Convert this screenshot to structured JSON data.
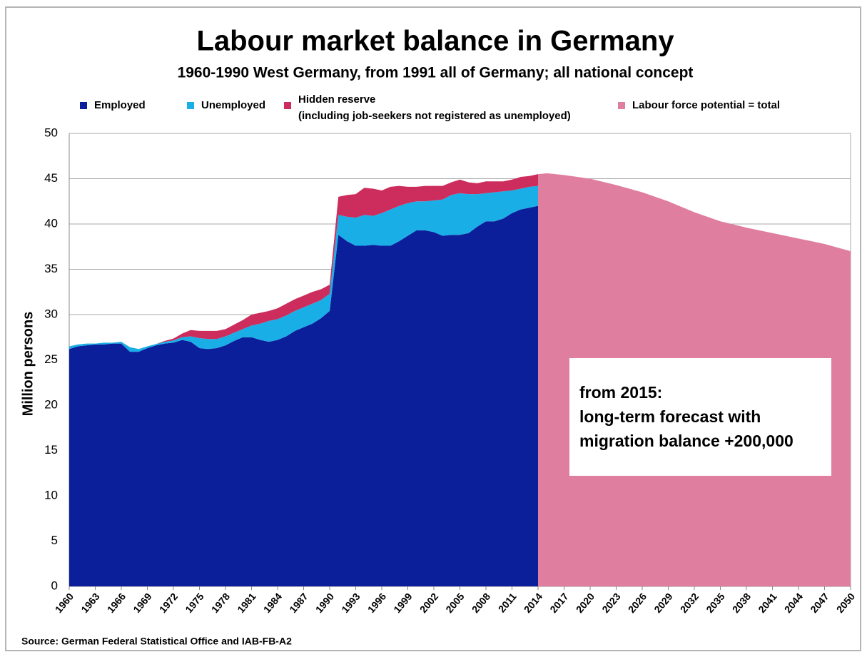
{
  "chart_data": {
    "type": "area",
    "title": "Labour market balance in Germany",
    "subtitle": "1960-1990 West Germany, from 1991 all of Germany; all national concept",
    "ylabel": "Million persons",
    "source": "Source: German Federal Statistical Office and IAB-FB-A2",
    "annotation": [
      "from 2015:",
      "long-term forecast with",
      "migration balance +200,000"
    ],
    "x": [
      1960,
      1961,
      1962,
      1963,
      1964,
      1965,
      1966,
      1967,
      1968,
      1969,
      1970,
      1971,
      1972,
      1973,
      1974,
      1975,
      1976,
      1977,
      1978,
      1979,
      1980,
      1981,
      1982,
      1983,
      1984,
      1985,
      1986,
      1987,
      1988,
      1989,
      1990,
      1991,
      1992,
      1993,
      1994,
      1995,
      1996,
      1997,
      1998,
      1999,
      2000,
      2001,
      2002,
      2003,
      2004,
      2005,
      2006,
      2007,
      2008,
      2009,
      2010,
      2011,
      2012,
      2013,
      2014,
      2015,
      2017,
      2020,
      2023,
      2026,
      2029,
      2032,
      2035,
      2038,
      2041,
      2044,
      2047,
      2050
    ],
    "series": [
      {
        "name": "Employed",
        "color": "#0c1f9a",
        "stacked": true,
        "values": [
          26.2,
          26.5,
          26.6,
          26.7,
          26.7,
          26.8,
          26.8,
          25.9,
          25.9,
          26.3,
          26.6,
          26.8,
          26.9,
          27.2,
          27.0,
          26.3,
          26.2,
          26.3,
          26.6,
          27.1,
          27.5,
          27.5,
          27.2,
          27.0,
          27.2,
          27.6,
          28.2,
          28.6,
          29.0,
          29.6,
          30.4,
          38.8,
          38.1,
          37.6,
          37.6,
          37.7,
          37.6,
          37.6,
          38.1,
          38.7,
          39.3,
          39.3,
          39.1,
          38.7,
          38.8,
          38.8,
          39.0,
          39.7,
          40.3,
          40.3,
          40.6,
          41.2,
          41.6,
          41.8,
          42.0,
          null,
          null,
          null,
          null,
          null,
          null,
          null,
          null,
          null,
          null,
          null,
          null,
          null
        ]
      },
      {
        "name": "Unemployed",
        "color": "#1aaee6",
        "stacked": true,
        "values": [
          0.3,
          0.2,
          0.2,
          0.1,
          0.2,
          0.1,
          0.2,
          0.5,
          0.3,
          0.2,
          0.15,
          0.2,
          0.25,
          0.3,
          0.6,
          1.1,
          1.1,
          1.0,
          1.0,
          0.9,
          0.9,
          1.3,
          1.8,
          2.3,
          2.3,
          2.3,
          2.2,
          2.2,
          2.2,
          2.0,
          1.9,
          2.2,
          2.7,
          3.1,
          3.4,
          3.2,
          3.6,
          4.0,
          3.9,
          3.6,
          3.2,
          3.2,
          3.5,
          4.0,
          4.4,
          4.6,
          4.3,
          3.6,
          3.1,
          3.2,
          3.0,
          2.5,
          2.3,
          2.3,
          2.2,
          null,
          null,
          null,
          null,
          null,
          null,
          null,
          null,
          null,
          null,
          null,
          null,
          null
        ]
      },
      {
        "name": "Hidden reserve",
        "note": "(including job-seekers not registered as unemployed)",
        "color": "#cc2d5c",
        "stacked": true,
        "values": [
          0,
          0,
          0,
          0,
          0,
          0,
          0,
          0,
          0,
          0,
          0,
          0.1,
          0.2,
          0.4,
          0.7,
          0.8,
          0.9,
          0.9,
          0.8,
          0.9,
          1.0,
          1.2,
          1.2,
          1.1,
          1.2,
          1.3,
          1.3,
          1.3,
          1.3,
          1.2,
          1.0,
          2.0,
          2.4,
          2.6,
          3.0,
          3.0,
          2.5,
          2.5,
          2.2,
          1.8,
          1.6,
          1.7,
          1.6,
          1.5,
          1.4,
          1.5,
          1.3,
          1.2,
          1.3,
          1.2,
          1.1,
          1.2,
          1.3,
          1.2,
          1.3,
          null,
          null,
          null,
          null,
          null,
          null,
          null,
          null,
          null,
          null,
          null,
          null,
          null
        ]
      },
      {
        "name": "Labour force potential = total",
        "color": "#e07ea0",
        "stacked": false,
        "values": [
          null,
          null,
          null,
          null,
          null,
          null,
          null,
          null,
          null,
          null,
          null,
          null,
          null,
          null,
          null,
          null,
          null,
          null,
          null,
          null,
          null,
          null,
          null,
          null,
          null,
          null,
          null,
          null,
          null,
          null,
          null,
          null,
          null,
          null,
          null,
          null,
          null,
          null,
          null,
          null,
          null,
          null,
          null,
          null,
          null,
          null,
          null,
          null,
          null,
          null,
          null,
          null,
          null,
          null,
          45.5,
          45.6,
          45.4,
          45.0,
          44.3,
          43.5,
          42.5,
          41.3,
          40.3,
          39.6,
          39.0,
          38.4,
          37.8,
          37.0
        ]
      }
    ],
    "xlim": [
      1960,
      2050
    ],
    "xticks": [
      1960,
      1963,
      1966,
      1969,
      1972,
      1975,
      1978,
      1981,
      1984,
      1987,
      1990,
      1993,
      1996,
      1999,
      2002,
      2005,
      2008,
      2011,
      2014,
      2017,
      2020,
      2023,
      2026,
      2029,
      2032,
      2035,
      2038,
      2041,
      2044,
      2047,
      2050
    ],
    "ylim": [
      0,
      50
    ],
    "yticks": [
      0,
      5,
      10,
      15,
      20,
      25,
      30,
      35,
      40,
      45,
      50
    ],
    "grid": true
  }
}
